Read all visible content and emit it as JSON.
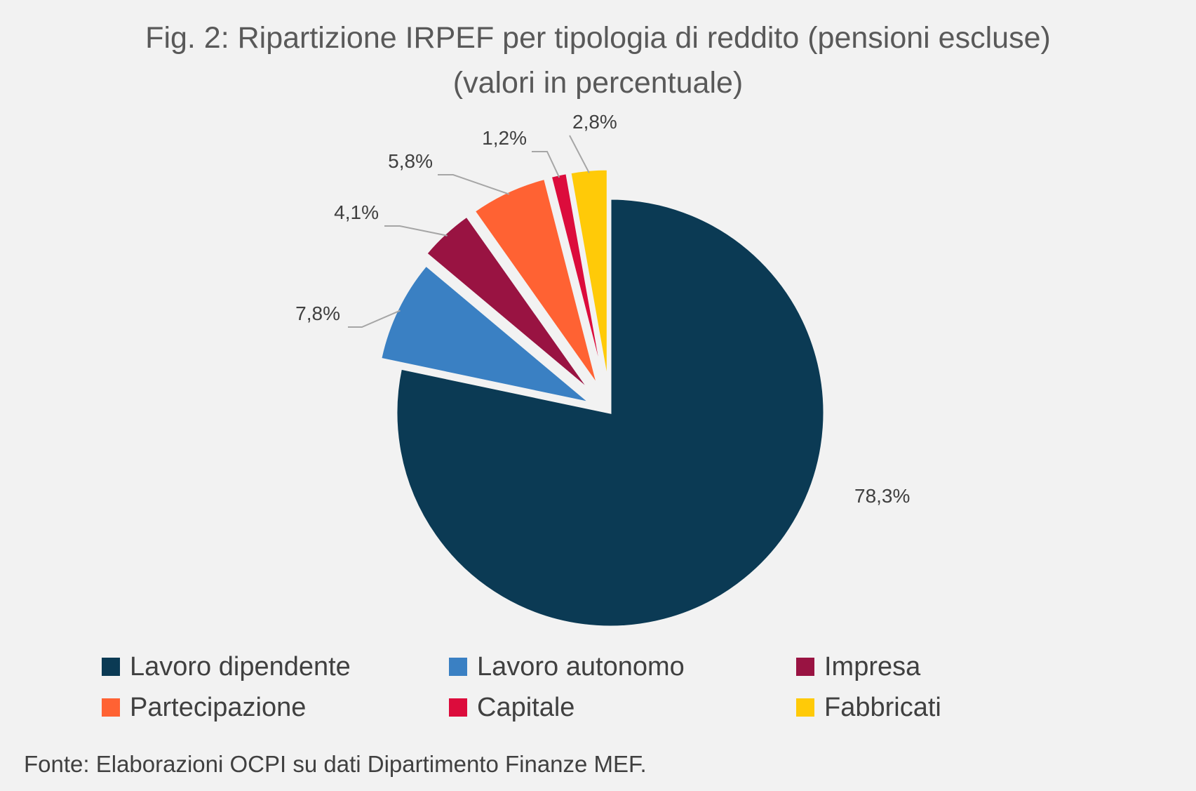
{
  "title_line1": "Fig. 2: Ripartizione IRPEF per tipologia di reddito (pensioni escluse)",
  "title_line2": "(valori in percentuale)",
  "source": "Fonte: Elaborazioni OCPI su dati Dipartimento Finanze MEF.",
  "chart_data": {
    "type": "pie",
    "title": "Fig. 2: Ripartizione IRPEF per tipologia di reddito (pensioni escluse) (valori in percentuale)",
    "categories": [
      "Lavoro dipendente",
      "Lavoro autonomo",
      "Impresa",
      "Partecipazione",
      "Capitale",
      "Fabbricati"
    ],
    "values": [
      78.3,
      7.8,
      4.1,
      5.8,
      1.2,
      2.8
    ],
    "labels": [
      "78,3%",
      "7,8%",
      "4,1%",
      "5,8%",
      "1,2%",
      "2,8%"
    ],
    "colors": [
      "#0b3a54",
      "#3a80c3",
      "#991342",
      "#ff6233",
      "#dc0c3c",
      "#ffca08"
    ],
    "exploded": [
      "Lavoro autonomo",
      "Impresa",
      "Partecipazione",
      "Capitale",
      "Fabbricati"
    ],
    "legend_position": "bottom"
  },
  "legend": [
    {
      "label": "Lavoro dipendente",
      "color": "#0b3a54"
    },
    {
      "label": "Lavoro autonomo",
      "color": "#3a80c3"
    },
    {
      "label": "Impresa",
      "color": "#991342"
    },
    {
      "label": "Partecipazione",
      "color": "#ff6233"
    },
    {
      "label": "Capitale",
      "color": "#dc0c3c"
    },
    {
      "label": "Fabbricati",
      "color": "#ffca08"
    }
  ]
}
